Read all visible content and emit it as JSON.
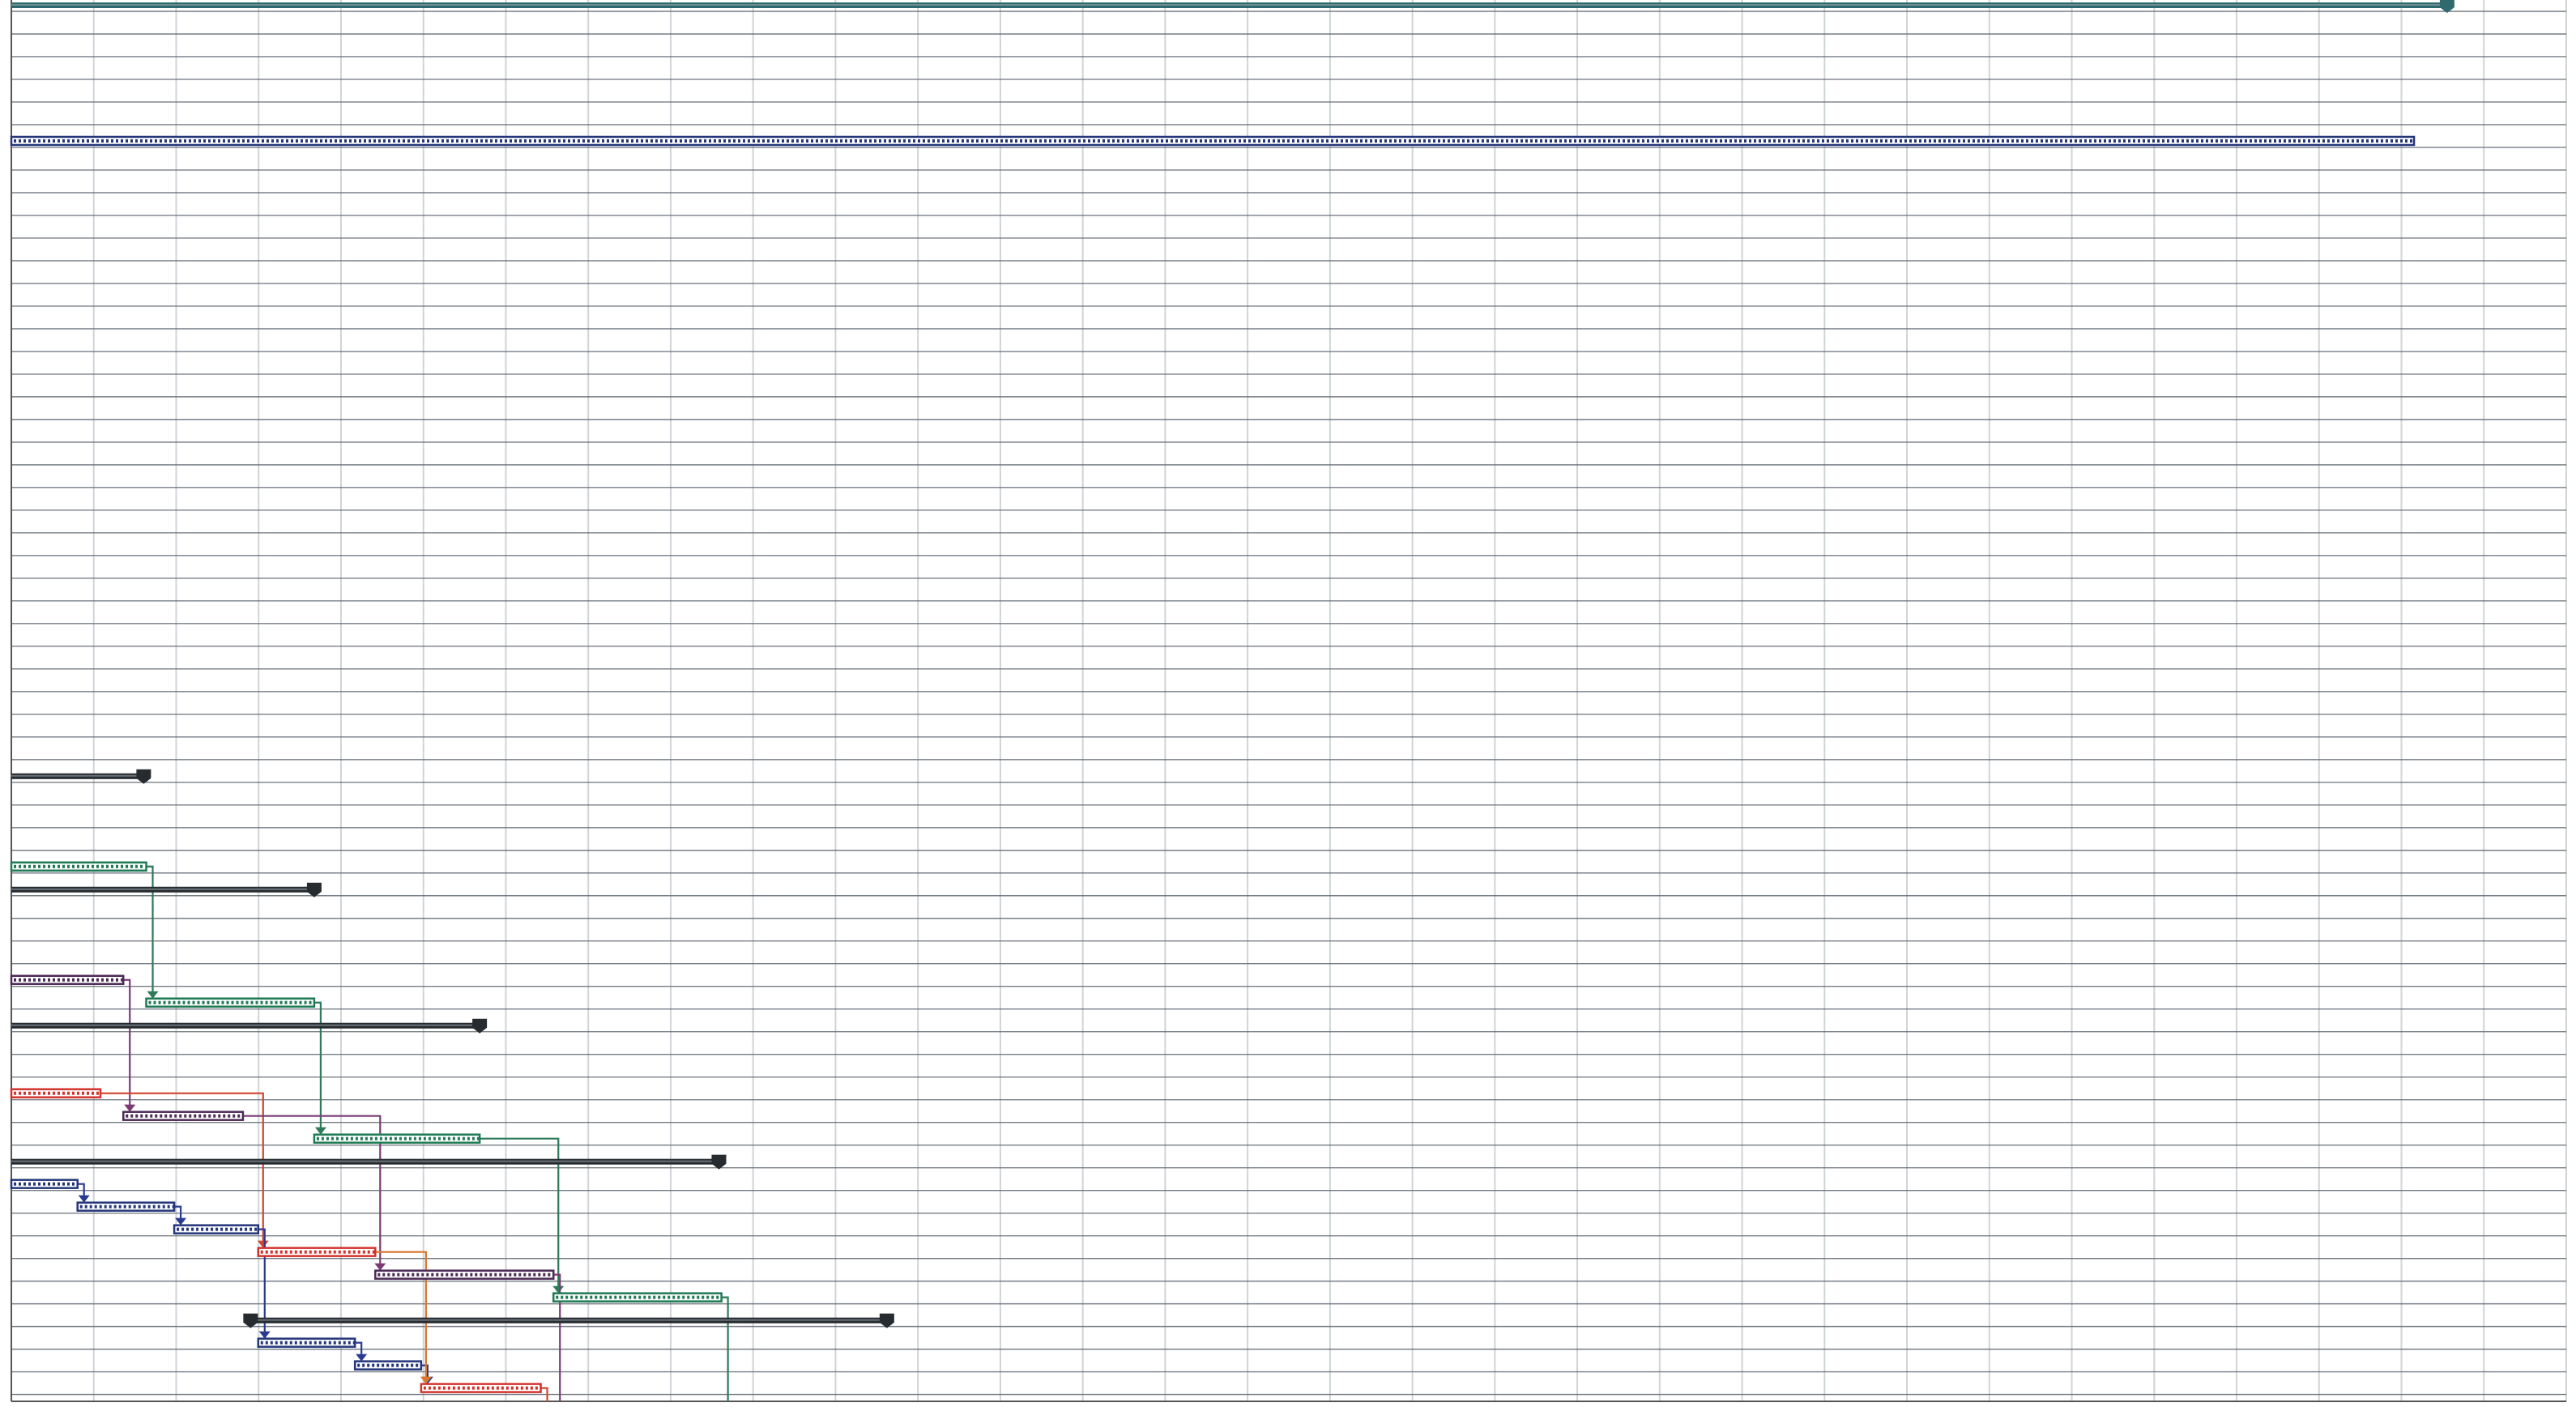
{
  "view": {
    "description_visible_text": "",
    "grid": true,
    "colors": {
      "grid_h": "#5f6770",
      "grid_v": "#cfd4d8",
      "project_summary": "#2f6b6e",
      "blue_task": "#24357a",
      "green_task": "#1f7a55",
      "purple_task": "#4b2a55",
      "red_task": "#d2322b",
      "summary_dark": "#262b30",
      "link_purple": "#7a3b74",
      "link_red": "#d0452f",
      "link_green": "#2e7a5b",
      "link_blue": "#2a3a90",
      "link_orange": "#d9772d"
    }
  },
  "gantt": {
    "rows_total": 62,
    "vertical_columns": 31,
    "bars": [
      {
        "name": "project-summary-bar",
        "kind": "summary",
        "color": "project_summary",
        "row": 0,
        "start": 0.0,
        "end": 0.957,
        "end_marker": true
      },
      {
        "name": "long-blue-bar",
        "kind": "task",
        "color": "blue_task",
        "row": 6,
        "start": 0.0,
        "end": 0.944
      },
      {
        "name": "summary-bar-1",
        "kind": "summary",
        "color": "summary_dark",
        "row": 34,
        "start": 0.0,
        "end": 0.052,
        "end_marker": true
      },
      {
        "name": "green-bar-1",
        "kind": "task",
        "color": "green_task",
        "row": 38,
        "start": 0.0,
        "end": 0.053
      },
      {
        "name": "summary-bar-2",
        "kind": "summary",
        "color": "summary_dark",
        "row": 39,
        "start": 0.0,
        "end": 0.119,
        "end_marker": true
      },
      {
        "name": "purple-bar-1",
        "kind": "task",
        "color": "purple_task",
        "row": 43,
        "start": 0.0,
        "end": 0.044
      },
      {
        "name": "green-bar-2",
        "kind": "task",
        "color": "green_task",
        "row": 44,
        "start": 0.053,
        "end": 0.119
      },
      {
        "name": "summary-bar-3",
        "kind": "summary",
        "color": "summary_dark",
        "row": 45,
        "start": 0.0,
        "end": 0.184,
        "end_marker": true
      },
      {
        "name": "red-bar-1",
        "kind": "task",
        "color": "red_task",
        "row": 48,
        "start": 0.0,
        "end": 0.035
      },
      {
        "name": "purple-bar-2",
        "kind": "task",
        "color": "purple_task",
        "row": 49,
        "start": 0.044,
        "end": 0.091
      },
      {
        "name": "green-bar-3",
        "kind": "task",
        "color": "green_task",
        "row": 50,
        "start": 0.119,
        "end": 0.184
      },
      {
        "name": "summary-bar-4",
        "kind": "summary",
        "color": "summary_dark",
        "row": 51,
        "start": 0.0,
        "end": 0.278,
        "end_marker": true
      },
      {
        "name": "blue-bar-1",
        "kind": "task",
        "color": "blue_task",
        "row": 52,
        "start": 0.0,
        "end": 0.026
      },
      {
        "name": "blue-bar-2",
        "kind": "task",
        "color": "blue_task",
        "row": 53,
        "start": 0.026,
        "end": 0.064
      },
      {
        "name": "blue-bar-3",
        "kind": "task",
        "color": "blue_task",
        "row": 54,
        "start": 0.064,
        "end": 0.097
      },
      {
        "name": "red-bar-2",
        "kind": "task",
        "color": "red_task",
        "row": 55,
        "start": 0.097,
        "end": 0.143
      },
      {
        "name": "purple-bar-3",
        "kind": "task",
        "color": "purple_task",
        "row": 56,
        "start": 0.143,
        "end": 0.213
      },
      {
        "name": "green-bar-4",
        "kind": "task",
        "color": "green_task",
        "row": 57,
        "start": 0.213,
        "end": 0.279
      },
      {
        "name": "summary-bar-5",
        "kind": "summary",
        "color": "summary_dark",
        "row": 58,
        "start": 0.094,
        "end": 0.344,
        "end_marker": true,
        "start_marker": true
      },
      {
        "name": "blue-bar-4",
        "kind": "task",
        "color": "blue_task",
        "row": 59,
        "start": 0.097,
        "end": 0.135
      },
      {
        "name": "blue-bar-5",
        "kind": "task",
        "color": "blue_task",
        "row": 60,
        "start": 0.135,
        "end": 0.161
      },
      {
        "name": "red-bar-3",
        "kind": "task",
        "color": "red_task",
        "row": 61,
        "start": 0.161,
        "end": 0.208
      }
    ],
    "links": [
      {
        "name": "link-green-1-to-2",
        "color": "link_green",
        "from": "green-bar-1",
        "to": "green-bar-2"
      },
      {
        "name": "link-purple-1-to-2",
        "color": "link_purple",
        "from": "purple-bar-1",
        "to": "purple-bar-2"
      },
      {
        "name": "link-green-2-to-3",
        "color": "link_green",
        "from": "green-bar-2",
        "to": "green-bar-3"
      },
      {
        "name": "link-red-1-to-2",
        "color": "link_red",
        "from": "red-bar-1",
        "to": "red-bar-2"
      },
      {
        "name": "link-purple-2-to-3",
        "color": "link_purple",
        "from": "purple-bar-2",
        "to": "purple-bar-3"
      },
      {
        "name": "link-green-3-to-4",
        "color": "link_green",
        "from": "green-bar-3",
        "to": "green-bar-4"
      },
      {
        "name": "link-blue-1-to-2",
        "color": "link_blue",
        "from": "blue-bar-1",
        "to": "blue-bar-2"
      },
      {
        "name": "link-blue-2-to-3",
        "color": "link_blue",
        "from": "blue-bar-2",
        "to": "blue-bar-3"
      },
      {
        "name": "link-blue-3-to-4",
        "color": "link_blue",
        "from": "blue-bar-3",
        "to": "blue-bar-4"
      },
      {
        "name": "link-blue-4-to-5",
        "color": "link_blue",
        "from": "blue-bar-4",
        "to": "blue-bar-5"
      },
      {
        "name": "link-blue-5-to-red-3",
        "color": "link_blue",
        "from": "blue-bar-5",
        "to": "red-bar-3"
      },
      {
        "name": "link-red-2-to-3",
        "color": "link_orange",
        "from": "red-bar-2",
        "to": "red-bar-3"
      },
      {
        "name": "link-purple-3-down",
        "color": "link_purple",
        "from": "purple-bar-3",
        "to": null
      },
      {
        "name": "link-green-4-down",
        "color": "link_green",
        "from": "green-bar-4",
        "to": null
      },
      {
        "name": "link-red-3-down",
        "color": "link_red",
        "from": "red-bar-3",
        "to": null
      }
    ]
  }
}
